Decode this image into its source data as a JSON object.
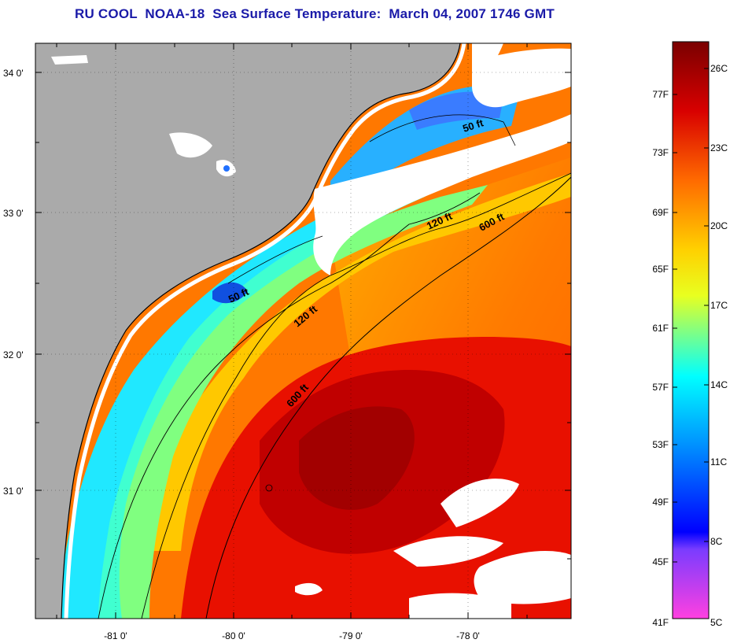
{
  "title": "RU COOL  NOAA-18  Sea Surface Temperature:  March 04, 2007 1746 GMT",
  "map": {
    "lat_ticks": [
      "34 0'",
      "33 0'",
      "32 0'",
      "31 0'"
    ],
    "lon_ticks": [
      "-81 0'",
      "-80 0'",
      "-79 0'",
      "-78 0'"
    ],
    "contours": [
      {
        "label": "50 ft"
      },
      {
        "label": "50 ft"
      },
      {
        "label": "120 ft"
      },
      {
        "label": "120 ft"
      },
      {
        "label": "600 ft"
      },
      {
        "label": "600 ft"
      }
    ],
    "colors": {
      "land": "#aaaaaa",
      "cloud": "#ffffff",
      "coast": "#000000"
    }
  },
  "colorbar": {
    "fahrenheit": [
      "77F",
      "73F",
      "69F",
      "65F",
      "61F",
      "57F",
      "53F",
      "49F",
      "45F",
      "41F"
    ],
    "celsius": [
      "26C",
      "23C",
      "20C",
      "17C",
      "14C",
      "11C",
      "8C",
      "5C"
    ],
    "stops": [
      "#7a0000",
      "#d80000",
      "#ff6a00",
      "#ffd000",
      "#c8ff3c",
      "#00ffff",
      "#0070ff",
      "#0000ff",
      "#a040ff",
      "#ff40ff"
    ]
  }
}
